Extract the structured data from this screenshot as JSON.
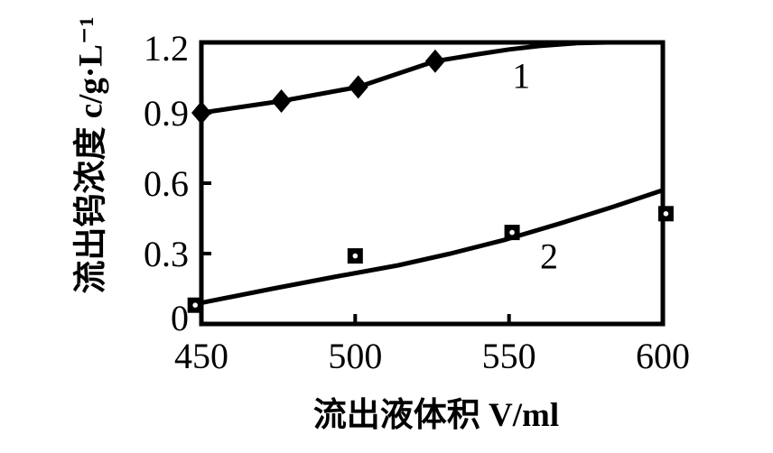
{
  "page": {
    "background": "#ffffff",
    "ink_color": "#000000"
  },
  "chart_data": {
    "type": "line",
    "title": "",
    "xlabel": "流出液体积 V/ml",
    "ylabel": "流出钨浓度 c/g·L⁻¹",
    "xlim": [
      450,
      600
    ],
    "ylim": [
      0,
      1.2
    ],
    "xticks": [
      450,
      500,
      550,
      600
    ],
    "xtick_labels": [
      "450",
      "500",
      "550",
      "600"
    ],
    "yticks": [
      0,
      0.3,
      0.6,
      0.9,
      1.2
    ],
    "ytick_labels": [
      "0",
      "0.3",
      "0.6",
      "0.9",
      "1.2"
    ],
    "grid": false,
    "legend_position": "inline-curve-labels",
    "series": [
      {
        "name": "curve-1",
        "label": "1",
        "marker": "diamond",
        "color": "#000000",
        "points": [
          [
            450,
            0.9
          ],
          [
            476,
            0.95
          ],
          [
            501,
            1.01
          ],
          [
            526,
            1.12
          ]
        ],
        "curve": [
          [
            450,
            0.9
          ],
          [
            476,
            0.95
          ],
          [
            501,
            1.01
          ],
          [
            526,
            1.12
          ],
          [
            540,
            1.15
          ],
          [
            550,
            1.17
          ],
          [
            560,
            1.185
          ],
          [
            572,
            1.197
          ],
          [
            582,
            1.2
          ],
          [
            600,
            1.2
          ]
        ],
        "label_at": [
          554,
          1.06
        ]
      },
      {
        "name": "curve-2",
        "label": "2",
        "marker": "square",
        "color": "#000000",
        "points": [
          [
            448,
            0.08
          ],
          [
            500,
            0.29
          ],
          [
            551,
            0.39
          ],
          [
            601,
            0.47
          ]
        ],
        "curve": [
          [
            450,
            0.09
          ],
          [
            473,
            0.15
          ],
          [
            493,
            0.2
          ],
          [
            514,
            0.25
          ],
          [
            531,
            0.3
          ],
          [
            549,
            0.36
          ],
          [
            567,
            0.43
          ],
          [
            584,
            0.5
          ],
          [
            600,
            0.57
          ]
        ],
        "label_at": [
          563,
          0.29
        ]
      }
    ]
  }
}
